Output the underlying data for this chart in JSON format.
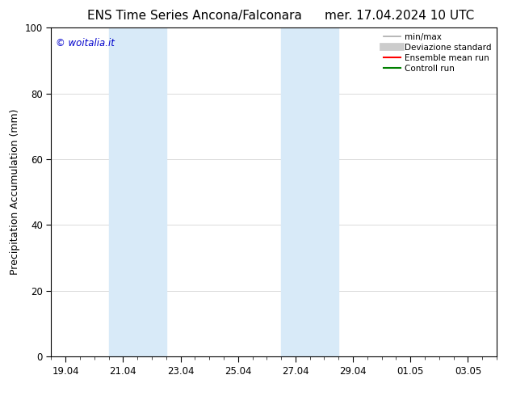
{
  "title_left": "ENS Time Series Ancona/Falconara",
  "title_right": "mer. 17.04.2024 10 UTC",
  "ylabel": "Precipitation Accumulation (mm)",
  "ylim": [
    0,
    100
  ],
  "yticks": [
    0,
    20,
    40,
    60,
    80,
    100
  ],
  "background_color": "#ffffff",
  "plot_bg_color": "#ffffff",
  "watermark": "© woitalia.it",
  "watermark_color": "#0000cc",
  "x_tick_labels": [
    "19.04",
    "21.04",
    "23.04",
    "25.04",
    "27.04",
    "29.04",
    "01.05",
    "03.05"
  ],
  "x_tick_positions": [
    0,
    2,
    4,
    6,
    8,
    10,
    12,
    14
  ],
  "x_min": -0.5,
  "x_max": 15.0,
  "shaded_bands": [
    {
      "x_start": 1.5,
      "x_end": 3.5,
      "color": "#d8eaf8"
    },
    {
      "x_start": 7.5,
      "x_end": 9.5,
      "color": "#d8eaf8"
    }
  ],
  "legend_entries": [
    {
      "label": "min/max",
      "color": "#aaaaaa",
      "lw": 1.2,
      "style": "solid",
      "type": "line"
    },
    {
      "label": "Deviazione standard",
      "color": "#cccccc",
      "lw": 7,
      "style": "solid",
      "type": "line"
    },
    {
      "label": "Ensemble mean run",
      "color": "#ff0000",
      "lw": 1.5,
      "style": "solid",
      "type": "line"
    },
    {
      "label": "Controll run",
      "color": "#008000",
      "lw": 1.5,
      "style": "solid",
      "type": "line"
    }
  ],
  "title_fontsize": 11,
  "axis_label_fontsize": 9,
  "tick_fontsize": 8.5,
  "legend_fontsize": 7.5
}
